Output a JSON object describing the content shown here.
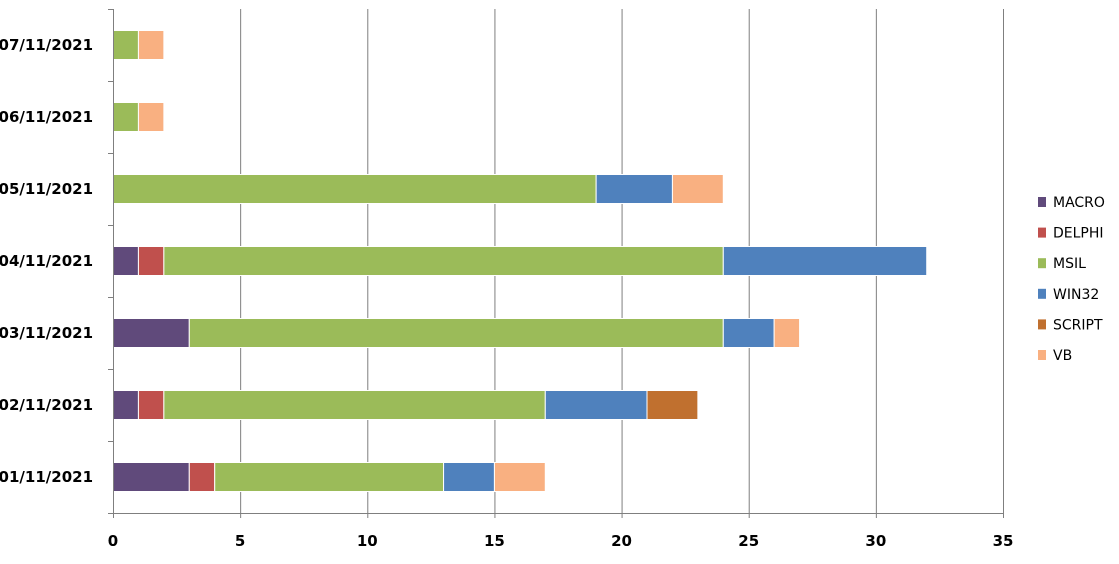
{
  "chart_data": {
    "type": "bar",
    "orientation": "horizontal",
    "stacked": true,
    "title": "",
    "xlabel": "",
    "ylabel": "",
    "xlim": [
      0,
      35
    ],
    "x_ticks": [
      0,
      5,
      10,
      15,
      20,
      25,
      30,
      35
    ],
    "grid": "vertical",
    "legend_position": "right",
    "categories": [
      "01/11/2021",
      "02/11/2021",
      "03/11/2021",
      "04/11/2021",
      "05/11/2021",
      "06/11/2021",
      "07/11/2021"
    ],
    "series": [
      {
        "name": "MACRO",
        "color": "#604a7b",
        "values": [
          3,
          1,
          3,
          1,
          0,
          0,
          0
        ]
      },
      {
        "name": "DELPHI",
        "color": "#c0504d",
        "values": [
          1,
          1,
          0,
          1,
          0,
          0,
          0
        ]
      },
      {
        "name": "MSIL",
        "color": "#9bbb59",
        "values": [
          9,
          15,
          21,
          22,
          19,
          1,
          1
        ]
      },
      {
        "name": "WIN32",
        "color": "#4f81bd",
        "values": [
          2,
          4,
          2,
          8,
          3,
          0,
          0
        ]
      },
      {
        "name": "SCRIPT",
        "color": "#c0702f",
        "values": [
          0,
          2,
          0,
          0,
          0,
          0,
          0
        ]
      },
      {
        "name": "VB",
        "color": "#f9b081",
        "values": [
          2,
          0,
          1,
          0,
          2,
          1,
          1
        ]
      }
    ]
  }
}
